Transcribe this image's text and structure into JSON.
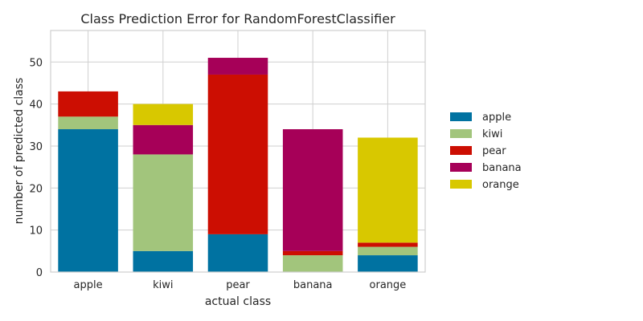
{
  "chart_data": {
    "type": "bar",
    "stacked": true,
    "title": "Class Prediction Error for RandomForestClassifier",
    "xlabel": "actual class",
    "ylabel": "number of predicted class",
    "categories": [
      "apple",
      "kiwi",
      "pear",
      "banana",
      "orange"
    ],
    "series": [
      {
        "name": "apple",
        "color": "#0072a1",
        "values": [
          34,
          5,
          9,
          0,
          4
        ]
      },
      {
        "name": "kiwi",
        "color": "#a2c57c",
        "values": [
          3,
          23,
          0,
          4,
          2
        ]
      },
      {
        "name": "pear",
        "color": "#cc0e02",
        "values": [
          6,
          0,
          38,
          1,
          1
        ]
      },
      {
        "name": "banana",
        "color": "#a60058",
        "values": [
          0,
          7,
          4,
          29,
          0
        ]
      },
      {
        "name": "orange",
        "color": "#d8c800",
        "values": [
          0,
          5,
          0,
          0,
          25
        ]
      }
    ],
    "ylim": [
      0,
      57.5
    ],
    "yticks": [
      0,
      10,
      20,
      30,
      40,
      50
    ],
    "grid": true,
    "legend_position": "right"
  }
}
